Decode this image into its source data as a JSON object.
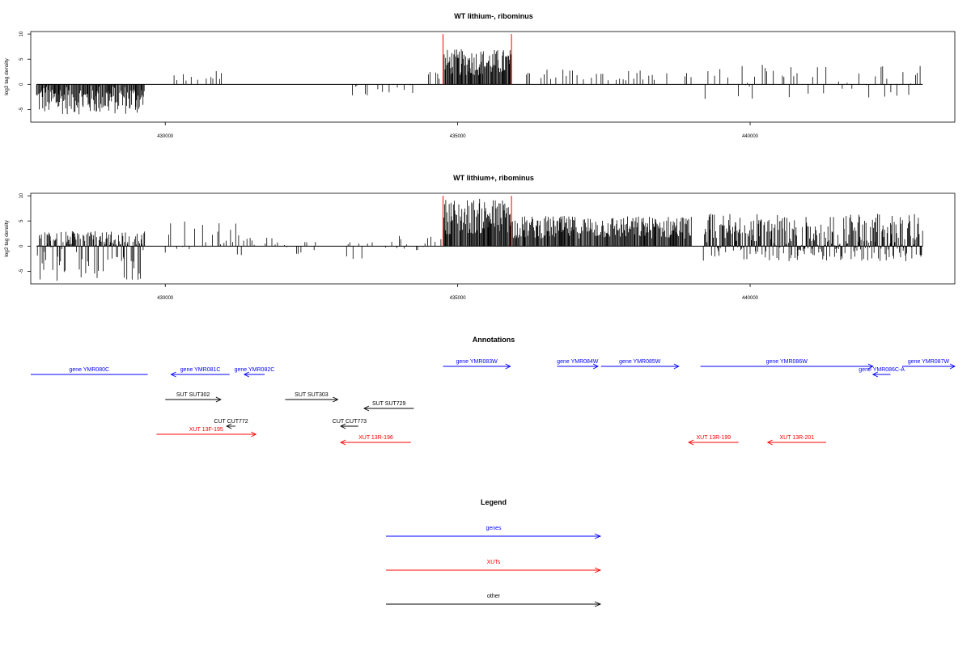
{
  "chart_data": [
    {
      "type": "bar",
      "title": "WT lithium-, ribominus",
      "ylabel": "log2 tag density",
      "xlim": [
        427700,
        443500
      ],
      "ylim": [
        -7.5,
        10.5
      ],
      "xticks": [
        430000,
        435000,
        440000
      ],
      "yticks": [
        -5,
        0,
        5,
        10
      ],
      "highlight_x": [
        434750,
        435920
      ],
      "segments": [
        {
          "from": 427800,
          "to": 429650,
          "min": -6,
          "max": -2
        },
        {
          "from": 434750,
          "to": 435920,
          "min": 0,
          "max": 7
        },
        {
          "from": 430150,
          "to": 431100,
          "min": 0,
          "max": 3
        },
        {
          "from": 433200,
          "to": 434250,
          "min": -3,
          "max": 0
        },
        {
          "from": 434500,
          "to": 434700,
          "min": 0,
          "max": 2.5
        },
        {
          "from": 436100,
          "to": 439000,
          "min": 0,
          "max": 3
        },
        {
          "from": 439200,
          "to": 442950,
          "min": -3,
          "max": 4
        }
      ]
    },
    {
      "type": "bar",
      "title": "WT lithium+, ribominus",
      "ylabel": "log2 tag density",
      "xlim": [
        427700,
        443500
      ],
      "ylim": [
        -7.5,
        10.5
      ],
      "xticks": [
        430000,
        435000,
        440000
      ],
      "yticks": [
        -5,
        0,
        5,
        10
      ],
      "highlight_x": [
        434750,
        435920
      ],
      "segments": [
        {
          "from": 427800,
          "to": 429650,
          "min": -7,
          "max": 3
        },
        {
          "from": 434750,
          "to": 435920,
          "min": 0,
          "max": 9.5
        },
        {
          "from": 430000,
          "to": 431300,
          "min": -2,
          "max": 5
        },
        {
          "from": 431300,
          "to": 432600,
          "min": -2,
          "max": 2
        },
        {
          "from": 433100,
          "to": 434000,
          "min": -3.5,
          "max": 1
        },
        {
          "from": 434000,
          "to": 434750,
          "min": -1,
          "max": 3
        },
        {
          "from": 435920,
          "to": 439000,
          "min": 0,
          "max": 6
        },
        {
          "from": 439200,
          "to": 442950,
          "min": -3,
          "max": 6.5
        }
      ]
    }
  ],
  "annotations": {
    "title": "Annotations",
    "items": [
      {
        "label": "gene YMR080C",
        "color": "#0000ff",
        "start": 427700,
        "end": 429700,
        "strand": "none",
        "row": 1
      },
      {
        "label": "gene YMR081C",
        "color": "#0000ff",
        "start": 431100,
        "end": 430100,
        "strand": "-",
        "row": 1
      },
      {
        "label": "gene YMR082C",
        "color": "#0000ff",
        "start": 431700,
        "end": 431350,
        "strand": "-",
        "row": 1
      },
      {
        "label": "gene YMR083W",
        "color": "#0000ff",
        "start": 434750,
        "end": 435900,
        "strand": "+",
        "row": 0
      },
      {
        "label": "gene YMR084W",
        "color": "#0000ff",
        "start": 436700,
        "end": 437400,
        "strand": "+",
        "row": 0
      },
      {
        "label": "gene YMR085W",
        "color": "#0000ff",
        "start": 437450,
        "end": 438780,
        "strand": "+",
        "row": 0
      },
      {
        "label": "gene YMR086W",
        "color": "#0000ff",
        "start": 439150,
        "end": 442100,
        "strand": "+",
        "row": 0
      },
      {
        "label": "gene YMR086C-A",
        "color": "#0000ff",
        "start": 442400,
        "end": 442100,
        "strand": "-",
        "row": 1
      },
      {
        "label": "gene YMR087W",
        "color": "#0000ff",
        "start": 442600,
        "end": 443500,
        "strand": "+",
        "row": 0
      },
      {
        "label": "SUT SUT302",
        "color": "#000000",
        "start": 430000,
        "end": 430950,
        "strand": "+",
        "row": 2
      },
      {
        "label": "SUT SUT303",
        "color": "#000000",
        "start": 432050,
        "end": 432950,
        "strand": "+",
        "row": 2
      },
      {
        "label": "SUT SUT729",
        "color": "#000000",
        "start": 434250,
        "end": 433400,
        "strand": "-",
        "row": 3
      },
      {
        "label": "CUT CUT772",
        "color": "#000000",
        "start": 431200,
        "end": 431050,
        "strand": "-",
        "row": 4
      },
      {
        "label": "CUT CUT773",
        "color": "#000000",
        "start": 433300,
        "end": 433000,
        "strand": "-",
        "row": 4
      },
      {
        "label": "XUT 13F-195",
        "color": "#ff0000",
        "start": 429850,
        "end": 431550,
        "strand": "+",
        "row": 5
      },
      {
        "label": "XUT 13R-196",
        "color": "#ff0000",
        "start": 434200,
        "end": 433000,
        "strand": "-",
        "row": 6
      },
      {
        "label": "XUT 13R-199",
        "color": "#ff0000",
        "start": 439800,
        "end": 438950,
        "strand": "-",
        "row": 6
      },
      {
        "label": "XUT 13R-201",
        "color": "#ff0000",
        "start": 441300,
        "end": 440300,
        "strand": "-",
        "row": 6
      }
    ]
  },
  "legend": {
    "title": "Legend",
    "items": [
      {
        "label": "genes",
        "color": "#0000ff"
      },
      {
        "label": "XUTs",
        "color": "#ff0000"
      },
      {
        "label": "other",
        "color": "#000000"
      }
    ]
  }
}
